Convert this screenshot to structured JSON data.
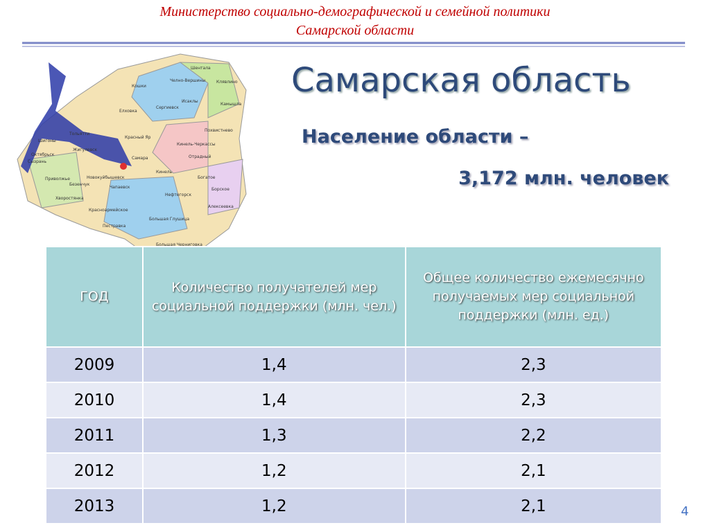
{
  "header": {
    "line1": "Министерство социально-демографической и семейной политики",
    "line2": "Самарской области"
  },
  "title": "Самарская область",
  "subtitle": "Население области –",
  "population": "3,172 млн. человек",
  "map": {
    "labels": [
      "Шентала",
      "Челно-Вершины",
      "Клявлино",
      "Кошки",
      "Исаклы",
      "Камышла",
      "Елховка",
      "Сергиевск",
      "Похвистнево",
      "Тольятти",
      "Красный Яр",
      "Кинель-Черкассы",
      "Шигоны",
      "Жигулевск",
      "Отрадный",
      "Октябрьск",
      "Сызрань",
      "Самара",
      "Кинель",
      "Приволжье",
      "Безенчук",
      "Новокуйбышевск",
      "Богатое",
      "Борское",
      "Хворостянка",
      "Чапаевск",
      "Нефтегорск",
      "Алексеевка",
      "Красноармейское",
      "Пестравка",
      "Большая Глушица",
      "Большая Черниговка"
    ]
  },
  "table": {
    "columns": [
      "ГОД",
      "Количество получателей мер социальной поддержки (млн. чел.)",
      "Общее количество ежемесячно получаемых мер социальной поддержки (млн. ед.)"
    ],
    "rows": [
      [
        "2009",
        "1,4",
        "2,3"
      ],
      [
        "2010",
        "1,4",
        "2,3"
      ],
      [
        "2011",
        "1,3",
        "2,2"
      ],
      [
        "2012",
        "1,2",
        "2,1"
      ],
      [
        "2013",
        "1,2",
        "2,1"
      ]
    ]
  },
  "page_number": "4"
}
